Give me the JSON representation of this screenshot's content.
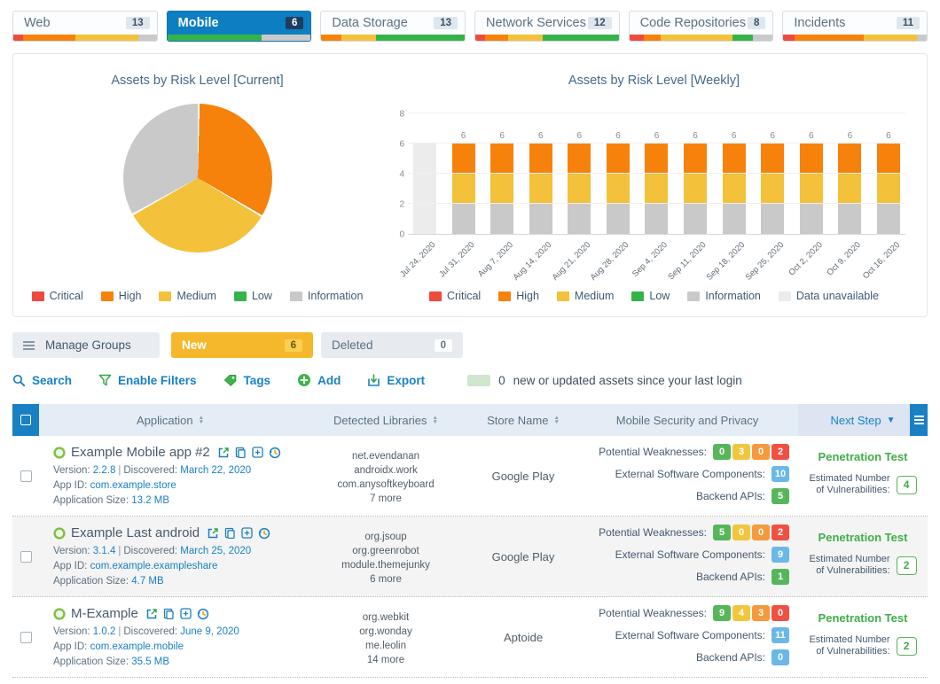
{
  "colors": {
    "critical": "#ee4b3e",
    "high": "#f6820c",
    "medium": "#f3c13a",
    "low": "#35b34a",
    "info": "#c9c9c9",
    "unavailable": "#ececec",
    "badge_green": "#57b65c",
    "badge_yellow": "#f0c63f",
    "badge_orange": "#f59a3c",
    "badge_red": "#f05042",
    "badge_blue": "#6ab7e8",
    "accent": "#1a80c4",
    "active_tab": "#0d7ec2"
  },
  "tabs": [
    {
      "label": "Web",
      "count": "13",
      "active": false,
      "segments": [
        [
          "critical",
          7
        ],
        [
          "high",
          36
        ],
        [
          "medium",
          44
        ],
        [
          "info",
          13
        ]
      ]
    },
    {
      "label": "Mobile",
      "count": "6",
      "active": true,
      "segments": [
        [
          "low",
          66
        ],
        [
          "info",
          34
        ]
      ]
    },
    {
      "label": "Data Storage",
      "count": "13",
      "active": false,
      "segments": [
        [
          "high",
          14
        ],
        [
          "medium",
          24
        ],
        [
          "low",
          62
        ]
      ]
    },
    {
      "label": "Network Services",
      "count": "12",
      "active": false,
      "segments": [
        [
          "critical",
          7
        ],
        [
          "high",
          16
        ],
        [
          "medium",
          24
        ],
        [
          "low",
          53
        ]
      ]
    },
    {
      "label": "Code Repositories",
      "count": "8",
      "active": false,
      "segments": [
        [
          "critical",
          10
        ],
        [
          "high",
          12
        ],
        [
          "medium",
          50
        ],
        [
          "low",
          14
        ],
        [
          "info",
          14
        ]
      ]
    },
    {
      "label": "Incidents",
      "count": "11",
      "active": false,
      "segments": [
        [
          "critical",
          8
        ],
        [
          "high",
          48
        ],
        [
          "medium",
          37
        ],
        [
          "info",
          7
        ]
      ]
    }
  ],
  "chart_data": [
    {
      "type": "pie",
      "title": "Assets by Risk Level [Current]",
      "labels": [
        "Critical",
        "High",
        "Medium",
        "Low",
        "Information"
      ],
      "values": [
        0,
        2,
        2,
        0,
        2
      ],
      "legend": [
        "Critical",
        "High",
        "Medium",
        "Low",
        "Information"
      ],
      "legend_position": "bottom"
    },
    {
      "type": "bar",
      "stacked": true,
      "title": "Assets by Risk Level [Weekly]",
      "categories": [
        "Jul 24, 2020",
        "Jul 31, 2020",
        "Aug 7, 2020",
        "Aug 14, 2020",
        "Aug 21, 2020",
        "Aug 28, 2020",
        "Sep 4, 2020",
        "Sep 11, 2020",
        "Sep 18, 2020",
        "Sep 25, 2020",
        "Oct 2, 2020",
        "Oct 9, 2020",
        "Oct 16, 2020"
      ],
      "series": [
        {
          "name": "Information",
          "values": [
            0,
            2,
            2,
            2,
            2,
            2,
            2,
            2,
            2,
            2,
            2,
            2,
            2
          ]
        },
        {
          "name": "Medium",
          "values": [
            0,
            2,
            2,
            2,
            2,
            2,
            2,
            2,
            2,
            2,
            2,
            2,
            2
          ]
        },
        {
          "name": "High",
          "values": [
            0,
            2,
            2,
            2,
            2,
            2,
            2,
            2,
            2,
            2,
            2,
            2,
            2
          ]
        },
        {
          "name": "Low",
          "values": [
            0,
            0,
            0,
            0,
            0,
            0,
            0,
            0,
            0,
            0,
            0,
            0,
            0
          ]
        },
        {
          "name": "Critical",
          "values": [
            0,
            0,
            0,
            0,
            0,
            0,
            0,
            0,
            0,
            0,
            0,
            0,
            0
          ]
        },
        {
          "name": "Data unavailable",
          "values": [
            6,
            0,
            0,
            0,
            0,
            0,
            0,
            0,
            0,
            0,
            0,
            0,
            0
          ]
        }
      ],
      "bar_labels": [
        "",
        "6",
        "6",
        "6",
        "6",
        "6",
        "6",
        "6",
        "6",
        "6",
        "6",
        "6",
        "6"
      ],
      "yticks": [
        8,
        6,
        4,
        2,
        0
      ],
      "ylim": [
        0,
        8
      ],
      "legend": [
        "Critical",
        "High",
        "Medium",
        "Low",
        "Information",
        "Data unavailable"
      ],
      "legend_position": "bottom"
    }
  ],
  "groups": {
    "manage_label": "Manage Groups",
    "filters": [
      {
        "label": "New",
        "count": "6",
        "active": true
      },
      {
        "label": "Deleted",
        "count": "0",
        "active": false
      }
    ]
  },
  "actions": [
    {
      "label": "Search",
      "icon": "search-icon"
    },
    {
      "label": "Enable Filters",
      "icon": "filter-icon"
    },
    {
      "label": "Tags",
      "icon": "tag-icon"
    },
    {
      "label": "Add",
      "icon": "add-icon"
    },
    {
      "label": "Export",
      "icon": "export-icon"
    }
  ],
  "notice": {
    "count": "0",
    "text": "new or updated assets since your last login"
  },
  "table": {
    "headers": {
      "application": "Application",
      "libraries": "Detected Libraries",
      "store": "Store Name",
      "security": "Mobile Security and Privacy",
      "next": "Next Step"
    },
    "row_labels": {
      "version": "Version:",
      "discovered": "Discovered:",
      "app_id": "App ID:",
      "size": "Application Size:",
      "weaknesses": "Potential Weaknesses:",
      "components": "External Software Components:",
      "apis": "Backend APIs:",
      "estimate_line1": "Estimated Number",
      "estimate_line2": "of Vulnerabilities:"
    },
    "rows": [
      {
        "name": "Example Mobile app #2",
        "version": "2.2.8",
        "discovered": "March 22, 2020",
        "app_id": "com.example.store",
        "size": "13.2 MB",
        "libraries": [
          "net.evendanan",
          "androidx.work",
          "com.anysoftkeyboard"
        ],
        "more": "7 more",
        "store": "Google Play",
        "weaknesses": [
          0,
          3,
          0,
          2
        ],
        "components": "10",
        "components_color": "blue",
        "apis": "5",
        "apis_color": "green",
        "next_action": "Penetration Test",
        "estimate": "4"
      },
      {
        "name": "Example Last android",
        "version": "3.1.4",
        "discovered": "March 25, 2020",
        "app_id": "com.example.exampleshare",
        "size": "4.7 MB",
        "libraries": [
          "org.jsoup",
          "org.greenrobot",
          "module.themejunky"
        ],
        "more": "6 more",
        "store": "Google Play",
        "weaknesses": [
          5,
          0,
          0,
          2
        ],
        "components": "9",
        "components_color": "blue",
        "apis": "1",
        "apis_color": "green",
        "next_action": "Penetration Test",
        "estimate": "2"
      },
      {
        "name": "M-Example",
        "version": "1.0.2",
        "discovered": "June 9, 2020",
        "app_id": "com.example.mobile",
        "size": "35.5 MB",
        "libraries": [
          "org.webkit",
          "org.wonday",
          "me.leolin"
        ],
        "more": "14 more",
        "store": "Aptoide",
        "weaknesses": [
          9,
          4,
          3,
          0
        ],
        "components": "11",
        "components_color": "blue",
        "apis": "0",
        "apis_color": "blue",
        "next_action": "Penetration Test",
        "estimate": "2"
      }
    ]
  }
}
